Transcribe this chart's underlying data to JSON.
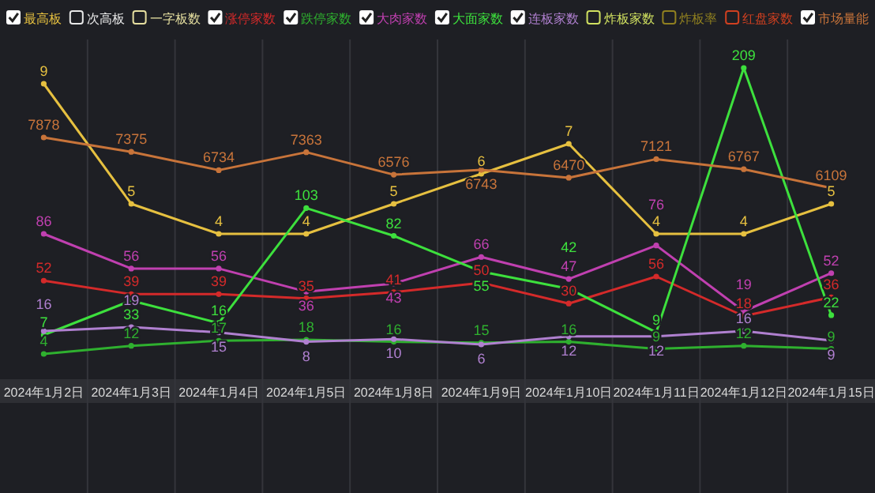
{
  "chart_data": [
    {
      "type": "line",
      "categories": [
        "2024年1月2日",
        "2024年1月3日",
        "2024年1月4日",
        "2024年1月5日",
        "2024年1月8日",
        "2024年1月9日",
        "2024年1月10日",
        "2024年1月11日",
        "2024年1月12日",
        "2024年1月15日"
      ],
      "data_labels": true,
      "marker": "circle",
      "line_style": "solid",
      "legend": "top",
      "tick_labels": "x",
      "series": [
        {
          "name": "最高板",
          "color": "#e6c040",
          "values": [
            9,
            5,
            4,
            4,
            5,
            6,
            7,
            4,
            4,
            5
          ]
        },
        {
          "name": "次高板",
          "color": "#e8e8e8",
          "values": [
            null,
            null,
            null,
            null,
            null,
            null,
            null,
            null,
            null,
            null
          ]
        },
        {
          "name": "一字板数",
          "color": "#e6dfa0",
          "values": [
            null,
            null,
            null,
            null,
            null,
            null,
            null,
            null,
            null,
            null
          ]
        }
      ]
    },
    {
      "type": "line",
      "data_labels": true,
      "marker": "circle",
      "line_style": "solid",
      "legend": "top",
      "tick_labels": false,
      "series": [
        {
          "name": "涨停家数",
          "color": "#d42a2a",
          "values": [
            52,
            39,
            39,
            35,
            41,
            50,
            30,
            56,
            18,
            36
          ]
        }
      ]
    },
    {
      "type": "line",
      "data_labels": true,
      "marker": "circle",
      "line_style": "solid",
      "legend": "top",
      "tick_labels": false,
      "series": [
        {
          "name": "跌停家数",
          "color": "#2fb02f",
          "values": [
            4,
            12,
            17,
            18,
            16,
            15,
            16,
            9,
            12,
            9
          ]
        }
      ]
    },
    {
      "type": "line",
      "data_labels": true,
      "marker": "circle",
      "line_style": "solid",
      "legend": "top",
      "tick_labels": false,
      "series": [
        {
          "name": "大肉家数",
          "color": "#c040b0",
          "values": [
            86,
            56,
            56,
            36,
            43,
            66,
            47,
            76,
            19,
            52
          ]
        }
      ]
    },
    {
      "type": "line",
      "data_labels": true,
      "marker": "circle",
      "line_style": "solid",
      "legend": "top",
      "tick_labels": false,
      "series": [
        {
          "name": "大面家数",
          "color": "#3de03d",
          "values": [
            7,
            33,
            16,
            103,
            82,
            55,
            42,
            9,
            209,
            22
          ]
        }
      ]
    },
    {
      "type": "line",
      "data_labels": true,
      "marker": "circle",
      "line_style": "solid",
      "legend": "top",
      "tick_labels": false,
      "series": [
        {
          "name": "连板家数",
          "color": "#b080d0",
          "values": [
            16,
            19,
            15,
            8,
            10,
            6,
            12,
            12,
            16,
            9
          ]
        },
        {
          "name": "炸板家数",
          "color": "#d0e060",
          "values": [
            null,
            null,
            null,
            null,
            null,
            null,
            null,
            null,
            null,
            null
          ]
        },
        {
          "name": "炸板率",
          "color": "#908020",
          "values": [
            null,
            null,
            null,
            null,
            null,
            null,
            null,
            null,
            null,
            null
          ]
        },
        {
          "name": "红盘家数",
          "color": "#d04020",
          "values": [
            null,
            null,
            null,
            null,
            null,
            null,
            null,
            null,
            null,
            null
          ]
        }
      ]
    },
    {
      "type": "line",
      "data_labels": true,
      "marker": "circle",
      "line_style": "solid",
      "legend": "top",
      "tick_labels": false,
      "series": [
        {
          "name": "市场量能",
          "color": "#c8743a",
          "values": [
            7878,
            7375,
            6734,
            7363,
            6576,
            6743,
            6470,
            7121,
            6767,
            6109
          ]
        }
      ]
    }
  ]
}
